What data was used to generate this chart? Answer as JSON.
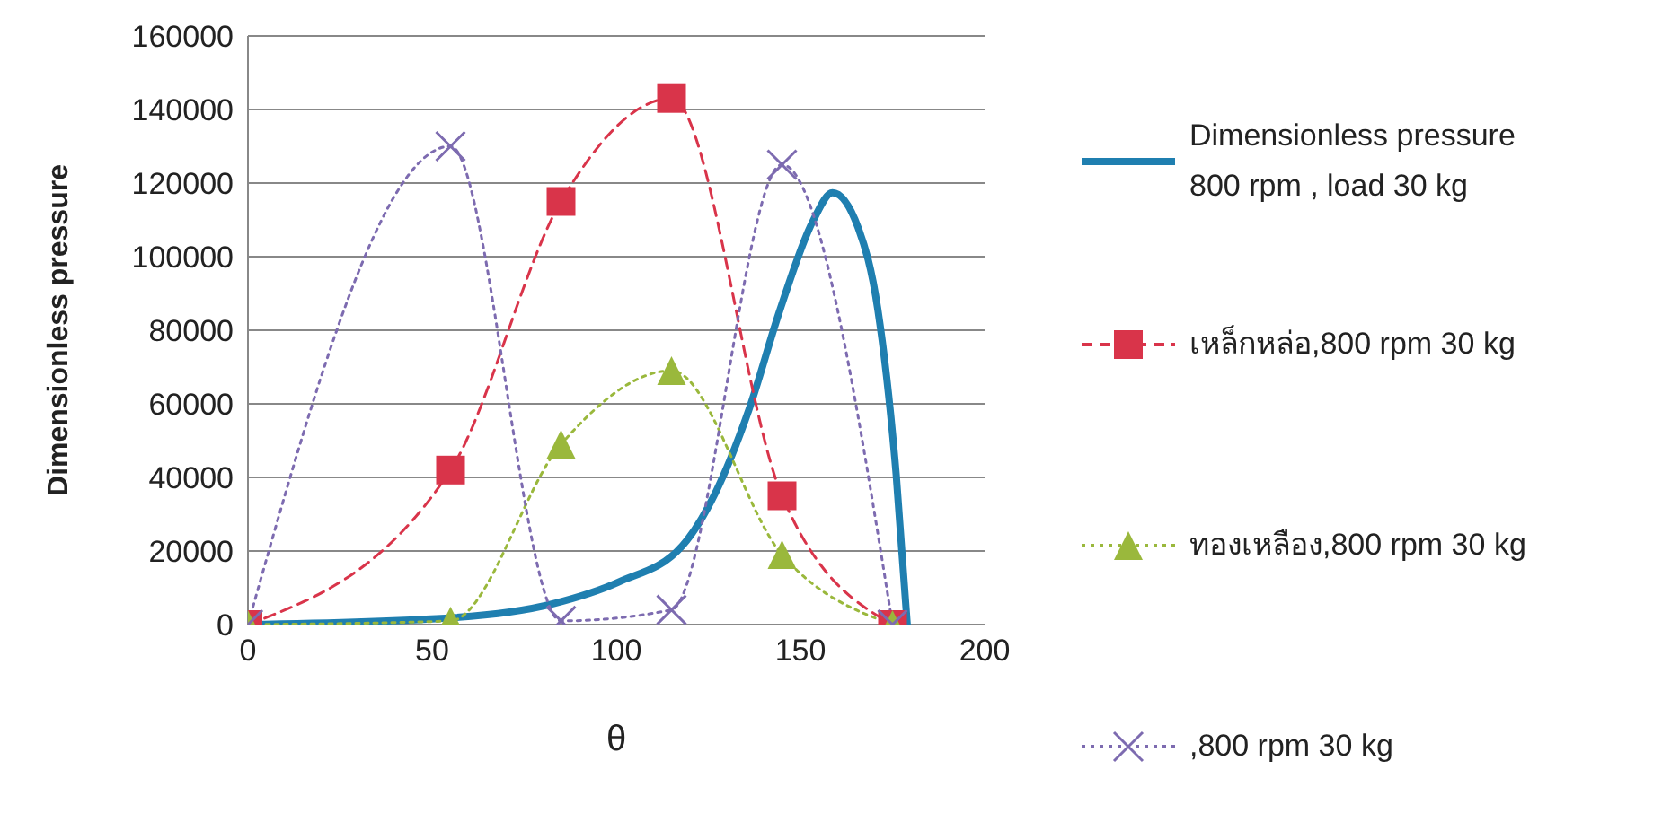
{
  "chart_data": {
    "type": "line",
    "xlabel": "θ",
    "ylabel": "Dimensionless pressure",
    "xlim": [
      0,
      200
    ],
    "xticks": [
      0,
      50,
      100,
      150,
      200
    ],
    "ylim": [
      0,
      160000
    ],
    "yticks": [
      0,
      20000,
      40000,
      60000,
      80000,
      100000,
      120000,
      140000,
      160000
    ],
    "grid": "y",
    "legend": "right",
    "series": [
      {
        "name": "Dimensionless pressure 800 rpm , load 30 kg",
        "color": "#1f7fb0",
        "line_style": "solid",
        "marker": "none",
        "x": [
          0,
          56,
          83,
          100.5,
          118,
          127,
          136,
          144.5,
          153.4,
          158.7,
          165.7,
          171,
          176,
          179
        ],
        "values": [
          0,
          1900,
          5700,
          11500,
          21500,
          36000,
          58400,
          85700,
          109700,
          117400,
          107800,
          85700,
          40700,
          0
        ]
      },
      {
        "name": "เหล็กหล่อ,800 rpm 30 kg",
        "color": "#d9344a",
        "line_style": "dashed",
        "marker": "square",
        "x": [
          0,
          55,
          85,
          115,
          145,
          175
        ],
        "values": [
          0,
          42000,
          115000,
          143000,
          35000,
          0
        ]
      },
      {
        "name": "ทองเหลือง,800 rpm 30 kg",
        "color": "#9ab83c",
        "line_style": "dotted",
        "marker": "triangle",
        "x": [
          0,
          55,
          85,
          115,
          145,
          175
        ],
        "values": [
          0,
          1000,
          49000,
          69000,
          19000,
          0
        ]
      },
      {
        "name": ",800 rpm 30 kg",
        "color": "#7d6bb0",
        "line_style": "dotted",
        "marker": "cross",
        "x": [
          0,
          55,
          85,
          115,
          145,
          175
        ],
        "values": [
          0,
          130000,
          1000,
          4000,
          125000,
          0
        ]
      }
    ]
  }
}
